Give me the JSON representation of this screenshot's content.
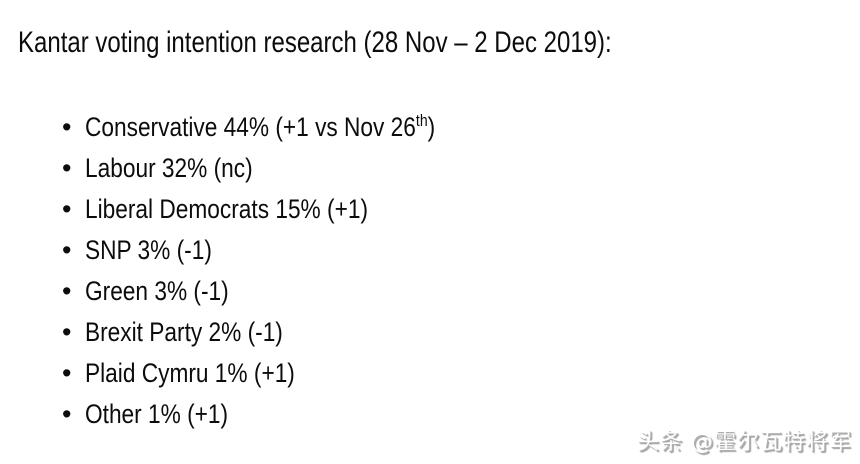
{
  "page": {
    "background": "#ffffff",
    "text_color": "#0c0c0c"
  },
  "title": {
    "text": "Kantar voting intention research (28 Nov – 2 Dec 2019):"
  },
  "list": {
    "bullet_char": "•",
    "items": [
      {
        "party": "Conservative",
        "percent": "44%",
        "change": "+1 vs Nov 26th",
        "label": "Conservative 44% (+1 vs Nov 26",
        "sup": "th",
        "tail": ")"
      },
      {
        "party": "Labour",
        "percent": "32%",
        "change": "nc",
        "label": "Labour 32% (nc)"
      },
      {
        "party": "Liberal Democrats",
        "percent": "15%",
        "change": "+1",
        "label": "Liberal Democrats 15% (+1)"
      },
      {
        "party": "SNP",
        "percent": "3%",
        "change": "-1",
        "label": "SNP 3% (-1)"
      },
      {
        "party": "Green",
        "percent": "3%",
        "change": "-1",
        "label": "Green 3% (-1)"
      },
      {
        "party": "Brexit Party",
        "percent": "2%",
        "change": "-1",
        "label": "Brexit Party 2% (-1)"
      },
      {
        "party": "Plaid Cymru",
        "percent": "1%",
        "change": "+1",
        "label": "Plaid Cymru 1% (+1)"
      },
      {
        "party": "Other",
        "percent": "1%",
        "change": "+1",
        "label": "Other 1% (+1)"
      }
    ]
  },
  "watermark": {
    "text": "头条 @霍尔瓦特将军"
  }
}
